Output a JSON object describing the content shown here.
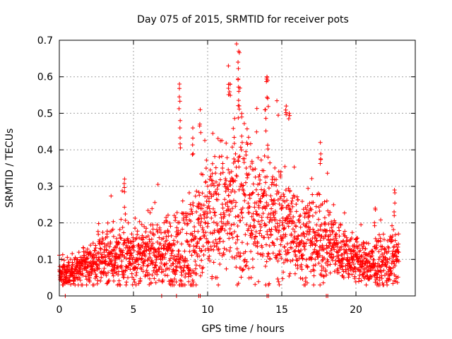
{
  "chart_data": {
    "type": "scatter",
    "title": "Day 075 of 2015, SRMTID for receiver pots",
    "xlabel": "GPS time / hours",
    "ylabel": "SRMTID / TECUs",
    "xlim": [
      0,
      24
    ],
    "ylim": [
      0,
      0.7
    ],
    "xticks": [
      "0",
      "5",
      "10",
      "15",
      "20"
    ],
    "xtick_values": [
      0,
      5,
      10,
      15,
      20
    ],
    "yticks": [
      "0",
      "0.1",
      "0.2",
      "0.3",
      "0.4",
      "0.5",
      "0.6",
      "0.7"
    ],
    "ytick_values": [
      0,
      0.1,
      0.2,
      0.3,
      0.4,
      0.5,
      0.6,
      0.7
    ],
    "grid": true,
    "marker": "+",
    "color": "#ff0000",
    "series_name": "SRMTID",
    "envelope_hours": [
      0,
      1,
      2,
      3,
      4,
      5,
      6,
      7,
      8,
      9,
      10,
      11,
      12,
      13,
      14,
      15,
      16,
      17,
      18,
      19,
      20,
      21,
      22,
      22.9
    ],
    "envelope_median": [
      0.06,
      0.07,
      0.08,
      0.1,
      0.11,
      0.11,
      0.11,
      0.12,
      0.12,
      0.14,
      0.2,
      0.24,
      0.26,
      0.24,
      0.22,
      0.2,
      0.17,
      0.15,
      0.15,
      0.12,
      0.1,
      0.08,
      0.09,
      0.1
    ],
    "envelope_spread": [
      0.04,
      0.05,
      0.06,
      0.07,
      0.09,
      0.08,
      0.07,
      0.09,
      0.12,
      0.16,
      0.18,
      0.2,
      0.22,
      0.2,
      0.18,
      0.17,
      0.13,
      0.12,
      0.11,
      0.08,
      0.07,
      0.06,
      0.08,
      0.08
    ],
    "sample_interval_hours": 0.01,
    "peaks": [
      {
        "x": 4.4,
        "y": 0.32
      },
      {
        "x": 8.1,
        "y": 0.58
      },
      {
        "x": 8.15,
        "y": 0.48
      },
      {
        "x": 9.5,
        "y": 0.51
      },
      {
        "x": 9.0,
        "y": 0.46
      },
      {
        "x": 11.4,
        "y": 0.63
      },
      {
        "x": 11.5,
        "y": 0.58
      },
      {
        "x": 12.1,
        "y": 0.67
      },
      {
        "x": 12.05,
        "y": 0.64
      },
      {
        "x": 12.1,
        "y": 0.56
      },
      {
        "x": 12.3,
        "y": 0.49
      },
      {
        "x": 14.0,
        "y": 0.6
      },
      {
        "x": 14.05,
        "y": 0.59
      },
      {
        "x": 13.9,
        "y": 0.51
      },
      {
        "x": 15.3,
        "y": 0.52
      },
      {
        "x": 15.5,
        "y": 0.5
      },
      {
        "x": 17.6,
        "y": 0.42
      },
      {
        "x": 22.6,
        "y": 0.29
      },
      {
        "x": 21.3,
        "y": 0.24
      }
    ],
    "zero_points": [
      0.4,
      6.9,
      7.9,
      9.4,
      9.5,
      14.0,
      14.1,
      18.0,
      18.1
    ]
  }
}
